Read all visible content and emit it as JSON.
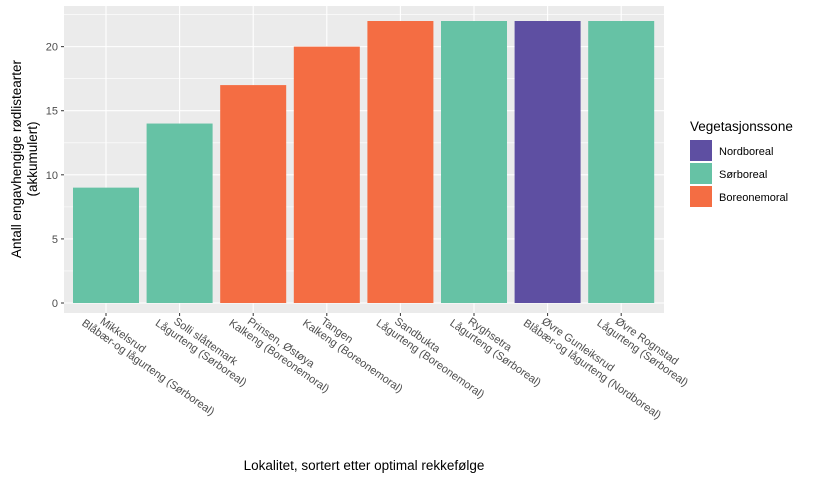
{
  "chart_data": {
    "type": "bar",
    "title": "",
    "xlabel": "Lokalitet, sortert etter optimal rekkefølge",
    "ylabel": [
      "Antall engavhengige rødlistearter",
      "(akkumulert)"
    ],
    "ylim": [
      0,
      22
    ],
    "yticks": [
      0,
      5,
      10,
      15,
      20
    ],
    "grid": true,
    "legend": {
      "title": "Vegetasjonssone",
      "placement": "right",
      "entries": [
        {
          "name": "Nordboreal",
          "color": "#5E4FA2"
        },
        {
          "name": "Sørboreal",
          "color": "#66C2A5"
        },
        {
          "name": "Boreonemoral",
          "color": "#F46D43"
        }
      ]
    },
    "categories": [
      [
        "Mikkelsrud",
        "Blåbær-og lågurteng (Sørboreal)"
      ],
      [
        "Solli slåttemark",
        "Lågurteng (Sørboreal)"
      ],
      [
        "Prinsen, Østøya",
        "Kalkeng (Boreonemoral)"
      ],
      [
        "Tangen",
        "Kalkeng (Boreonemoral)"
      ],
      [
        "Sandbukta",
        "Lågurteng (Boreonemoral)"
      ],
      [
        "Ryghsetra",
        "Lågurteng (Sørboreal)"
      ],
      [
        "Øvre Gunleiksrud",
        "Blåbær-og lågurteng (Nordboreal)"
      ],
      [
        "Øvre Rognstad",
        "Lågurteng (Sørboreal)"
      ]
    ],
    "values": [
      9,
      14,
      17,
      20,
      22,
      22,
      22,
      22
    ],
    "zones": [
      "Sørboreal",
      "Sørboreal",
      "Boreonemoral",
      "Boreonemoral",
      "Boreonemoral",
      "Sørboreal",
      "Nordboreal",
      "Sørboreal"
    ]
  },
  "colors": {
    "panel": "#EBEBEB",
    "grid": "#FFFFFF"
  }
}
